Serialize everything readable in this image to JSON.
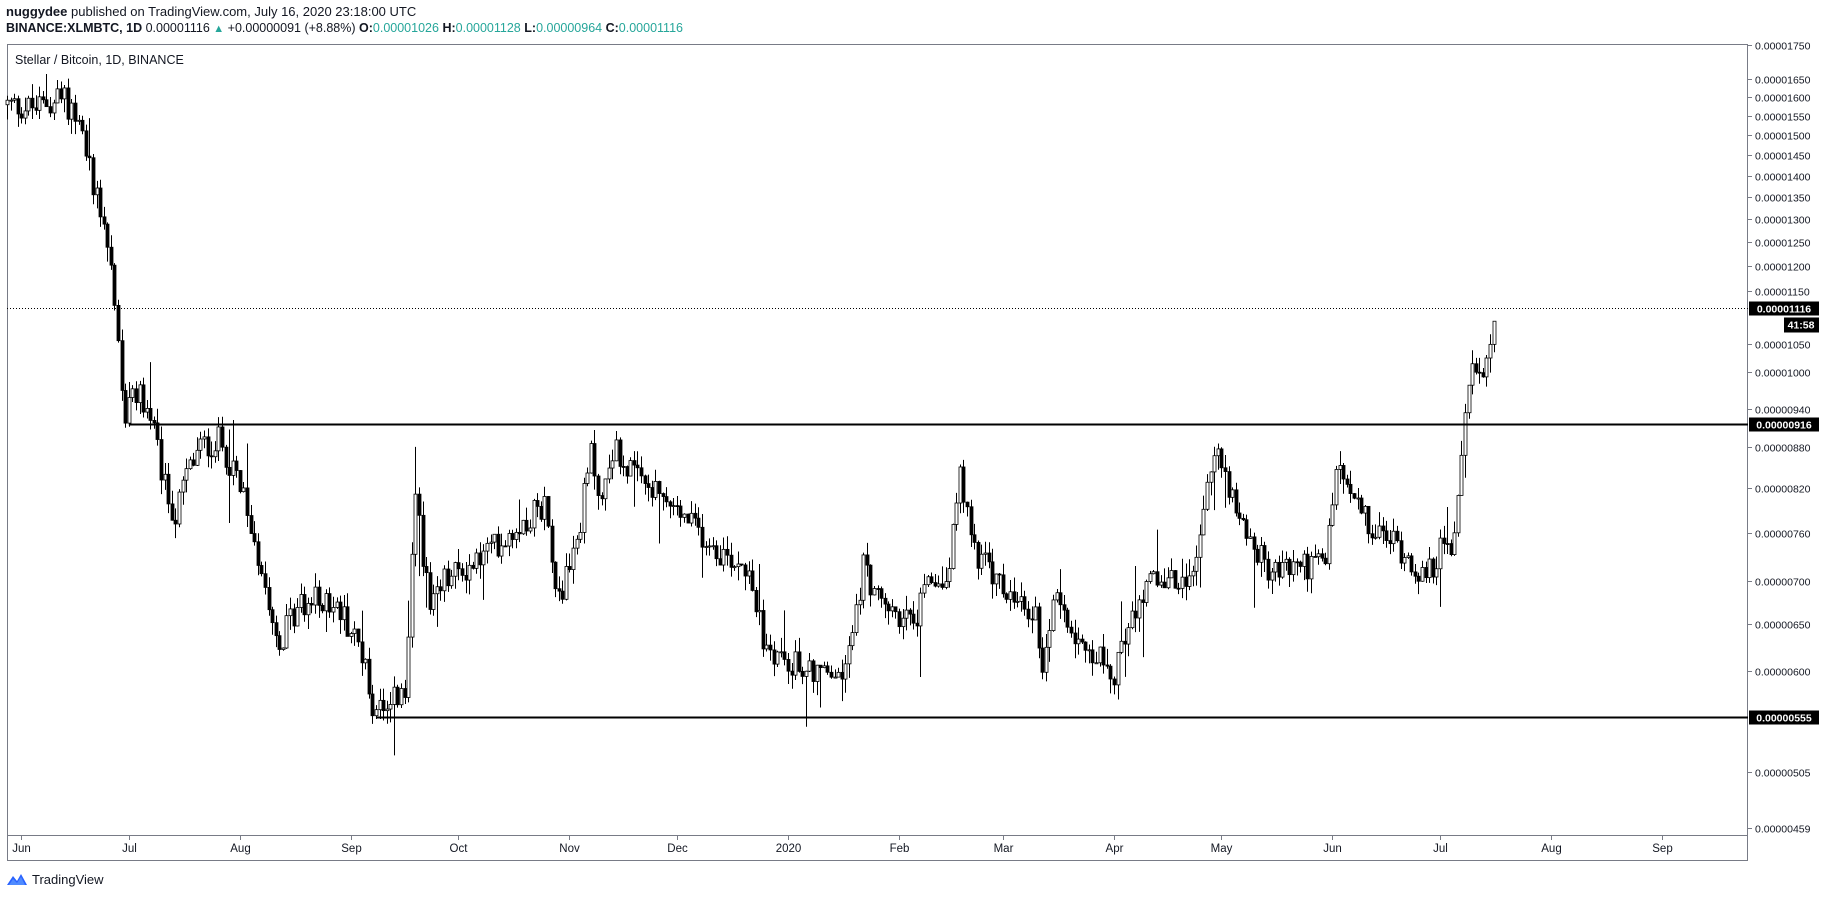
{
  "header": {
    "author": "nuggydee",
    "published_text": "published on TradingView.com, July 16, 2020 23:18:00 UTC",
    "symbol": "BINANCE:XLMBTC, 1D",
    "last": "0.00001116",
    "up_glyph": "▲",
    "change": "+0.00000091 (+8.88%)",
    "o_label": "O:",
    "o_value": "0.00001026",
    "h_label": "H:",
    "h_value": "0.00001128",
    "l_label": "L:",
    "l_value": "0.00000964",
    "c_label": "C:",
    "c_value": "0.00001116"
  },
  "footer": {
    "brand": "TradingView",
    "logo_icon": "tradingview-logo-icon"
  },
  "chart_data": {
    "type": "candlestick",
    "title": "Stellar / Bitcoin, 1D, BINANCE",
    "y_scale": "log",
    "ylim": [
      4.59e-06,
      1.78e-05
    ],
    "y_ticks": [
      "0.00001750",
      "0.00001650",
      "0.00001600",
      "0.00001550",
      "0.00001500",
      "0.00001450",
      "0.00001400",
      "0.00001350",
      "0.00001300",
      "0.00001250",
      "0.00001200",
      "0.00001150",
      "0.00001050",
      "0.00001000",
      "0.00000940",
      "0.00000880",
      "0.00000820",
      "0.00000760",
      "0.00000700",
      "0.00000650",
      "0.00000600",
      "0.00000505",
      "0.00000459"
    ],
    "x_ticks": [
      {
        "label": "Jun",
        "date": "2019-06-01"
      },
      {
        "label": "Jul",
        "date": "2019-07-01"
      },
      {
        "label": "Aug",
        "date": "2019-08-01"
      },
      {
        "label": "Sep",
        "date": "2019-09-01"
      },
      {
        "label": "Oct",
        "date": "2019-10-01"
      },
      {
        "label": "Nov",
        "date": "2019-11-01"
      },
      {
        "label": "Dec",
        "date": "2019-12-01"
      },
      {
        "label": "2020",
        "date": "2020-01-01"
      },
      {
        "label": "Feb",
        "date": "2020-02-01"
      },
      {
        "label": "Mar",
        "date": "2020-03-01"
      },
      {
        "label": "Apr",
        "date": "2020-04-01"
      },
      {
        "label": "May",
        "date": "2020-05-01"
      },
      {
        "label": "Jun",
        "date": "2020-06-01"
      },
      {
        "label": "Jul",
        "date": "2020-07-01"
      },
      {
        "label": "Aug",
        "date": "2020-08-01"
      },
      {
        "label": "Sep",
        "date": "2020-09-01"
      }
    ],
    "xlim": [
      "2019-05-28",
      "2020-09-25"
    ],
    "close_path": [
      [
        "2019-05-28",
        1.58e-05
      ],
      [
        "2019-06-05",
        1.57e-05
      ],
      [
        "2019-06-12",
        1.6e-05
      ],
      [
        "2019-06-16",
        1.56e-05
      ],
      [
        "2019-06-20",
        1.42e-05
      ],
      [
        "2019-06-24",
        1.3e-05
      ],
      [
        "2019-06-26",
        1.2e-05
      ],
      [
        "2019-06-28",
        1.05e-05
      ],
      [
        "2019-06-30",
        9.3e-06
      ],
      [
        "2019-07-04",
        9.7e-06
      ],
      [
        "2019-07-08",
        9e-06
      ],
      [
        "2019-07-11",
        8.2e-06
      ],
      [
        "2019-07-14",
        7.8e-06
      ],
      [
        "2019-07-17",
        8.4e-06
      ],
      [
        "2019-07-21",
        8.8e-06
      ],
      [
        "2019-07-26",
        8.9e-06
      ],
      [
        "2019-07-30",
        8.5e-06
      ],
      [
        "2019-08-04",
        7.7e-06
      ],
      [
        "2019-08-08",
        7e-06
      ],
      [
        "2019-08-12",
        6.3e-06
      ],
      [
        "2019-08-17",
        6.7e-06
      ],
      [
        "2019-08-24",
        6.8e-06
      ],
      [
        "2019-08-30",
        6.6e-06
      ],
      [
        "2019-09-04",
        6.2e-06
      ],
      [
        "2019-09-07",
        5.65e-06
      ],
      [
        "2019-09-12",
        5.75e-06
      ],
      [
        "2019-09-16",
        5.7e-06
      ],
      [
        "2019-09-19",
        8.2e-06
      ],
      [
        "2019-09-23",
        6.6e-06
      ],
      [
        "2019-09-27",
        7e-06
      ],
      [
        "2019-10-05",
        7.2e-06
      ],
      [
        "2019-10-15",
        7.6e-06
      ],
      [
        "2019-10-25",
        8e-06
      ],
      [
        "2019-10-29",
        6.8e-06
      ],
      [
        "2019-11-03",
        7.5e-06
      ],
      [
        "2019-11-07",
        8.7e-06
      ],
      [
        "2019-11-10",
        8e-06
      ],
      [
        "2019-11-13",
        8.8e-06
      ],
      [
        "2019-11-20",
        8.3e-06
      ],
      [
        "2019-11-28",
        8e-06
      ],
      [
        "2019-12-05",
        7.7e-06
      ],
      [
        "2019-12-15",
        7.3e-06
      ],
      [
        "2019-12-21",
        7.2e-06
      ],
      [
        "2019-12-25",
        6.3e-06
      ],
      [
        "2020-01-01",
        6.1e-06
      ],
      [
        "2020-01-10",
        6e-06
      ],
      [
        "2020-01-15",
        5.9e-06
      ],
      [
        "2020-01-18",
        6.2e-06
      ],
      [
        "2020-01-22",
        7.2e-06
      ],
      [
        "2020-01-27",
        6.7e-06
      ],
      [
        "2020-02-01",
        6.6e-06
      ],
      [
        "2020-02-05",
        6.5e-06
      ],
      [
        "2020-02-10",
        7e-06
      ],
      [
        "2020-02-14",
        7e-06
      ],
      [
        "2020-02-18",
        8.3e-06
      ],
      [
        "2020-02-22",
        7.4e-06
      ],
      [
        "2020-02-28",
        7e-06
      ],
      [
        "2020-03-05",
        6.7e-06
      ],
      [
        "2020-03-10",
        6.6e-06
      ],
      [
        "2020-03-12",
        6.1e-06
      ],
      [
        "2020-03-16",
        6.9e-06
      ],
      [
        "2020-03-20",
        6.5e-06
      ],
      [
        "2020-03-26",
        6.2e-06
      ],
      [
        "2020-04-01",
        6e-06
      ],
      [
        "2020-04-06",
        6.6e-06
      ],
      [
        "2020-04-10",
        7e-06
      ],
      [
        "2020-04-16",
        7e-06
      ],
      [
        "2020-04-22",
        6.9e-06
      ],
      [
        "2020-04-26",
        8e-06
      ],
      [
        "2020-04-30",
        8.7e-06
      ],
      [
        "2020-05-05",
        8e-06
      ],
      [
        "2020-05-10",
        7.4e-06
      ],
      [
        "2020-05-15",
        7.1e-06
      ],
      [
        "2020-05-22",
        7.2e-06
      ],
      [
        "2020-05-30",
        7.2e-06
      ],
      [
        "2020-06-02",
        8.5e-06
      ],
      [
        "2020-06-06",
        8.1e-06
      ],
      [
        "2020-06-12",
        7.6e-06
      ],
      [
        "2020-06-18",
        7.5e-06
      ],
      [
        "2020-06-24",
        7.2e-06
      ],
      [
        "2020-06-27",
        7e-06
      ],
      [
        "2020-07-01",
        7.4e-06
      ],
      [
        "2020-07-04",
        7.3e-06
      ],
      [
        "2020-07-06",
        8e-06
      ],
      [
        "2020-07-08",
        9.4e-06
      ],
      [
        "2020-07-10",
        1e-05
      ],
      [
        "2020-07-13",
        9.8e-06
      ],
      [
        "2020-07-15",
        1.026e-05
      ],
      [
        "2020-07-16",
        1.116e-05
      ]
    ],
    "last_price": "0.00001116",
    "countdown": "41:58",
    "levels": [
      {
        "price": 9.16e-06,
        "label": "0.00000916",
        "from": "2019-07-01"
      },
      {
        "price": 5.55e-06,
        "label": "0.00000555",
        "from": "2019-09-08"
      }
    ],
    "colors": {
      "candle": "#000000",
      "up_fill": "#ffffff",
      "grid": "#e0e3eb",
      "accent": "#26a69a",
      "label_bg": "#000000",
      "label_text": "#ffffff"
    }
  }
}
